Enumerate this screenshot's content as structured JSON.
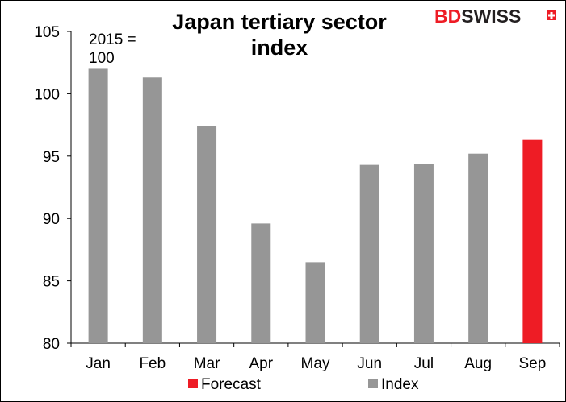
{
  "chart_data": {
    "type": "bar",
    "title_lines": [
      "Japan tertiary sector",
      "index"
    ],
    "annotation_lines": [
      "2015 =",
      "100"
    ],
    "categories": [
      "Jan",
      "Feb",
      "Mar",
      "Apr",
      "May",
      "Jun",
      "Jul",
      "Aug",
      "Sep"
    ],
    "series": [
      {
        "name": "Index",
        "values": [
          102.0,
          101.3,
          97.4,
          89.6,
          86.5,
          94.3,
          94.4,
          95.2,
          null
        ],
        "color": "#969696"
      },
      {
        "name": "Forecast",
        "values": [
          null,
          null,
          null,
          null,
          null,
          null,
          null,
          null,
          96.3
        ],
        "color": "#ee1c25"
      }
    ],
    "ylim": [
      80,
      105
    ],
    "yticks": [
      80,
      85,
      90,
      95,
      100,
      105
    ],
    "xlabel": "",
    "ylabel": "",
    "grid": false,
    "legend": {
      "position": "bottom",
      "order": [
        "Forecast",
        "Index"
      ]
    }
  },
  "logo": {
    "text_bd": "BD",
    "text_swiss": "SWISS",
    "color_bd": "#ee1c25",
    "color_swiss": "#231f20"
  }
}
